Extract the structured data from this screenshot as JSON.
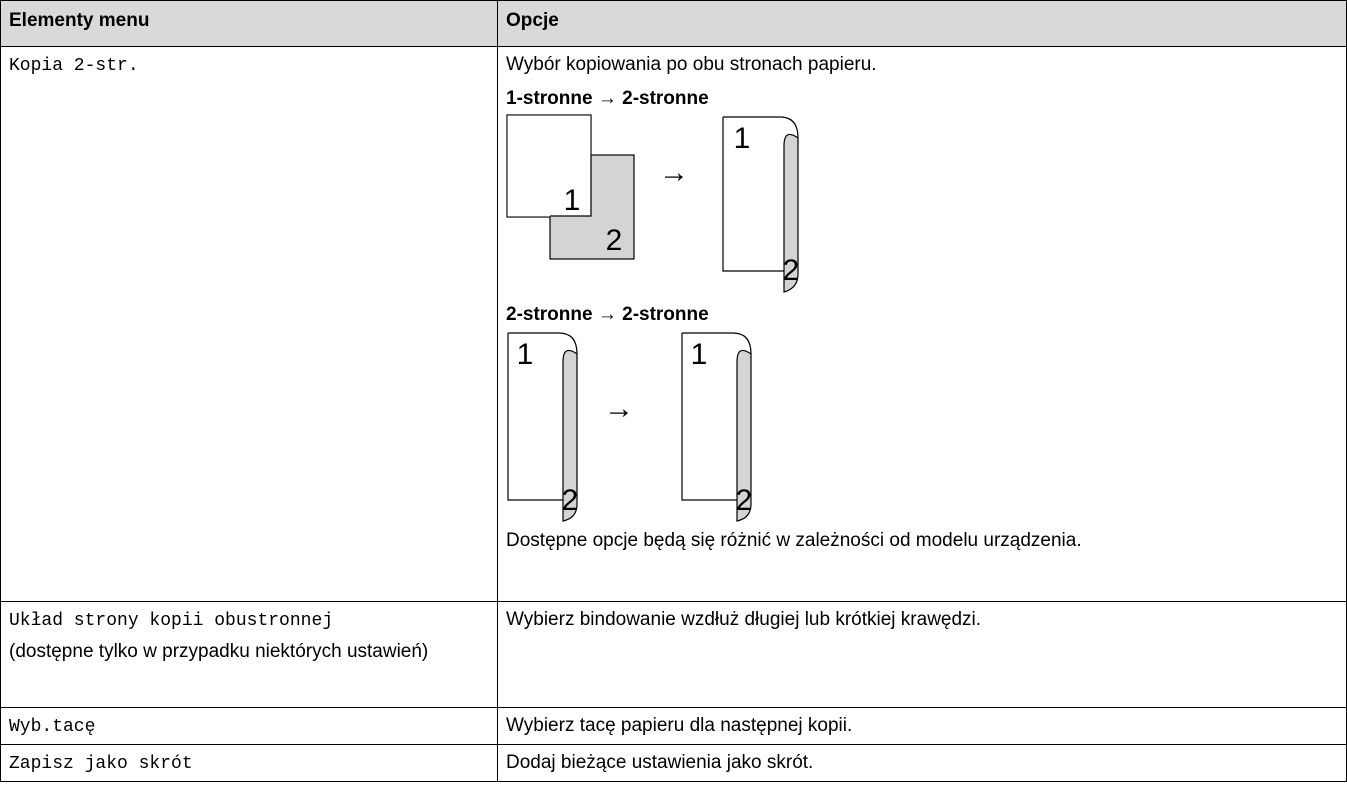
{
  "table": {
    "headers": [
      "Elementy menu",
      "Opcje"
    ],
    "rows": [
      {
        "item": "Kopia 2-str.",
        "options": {
          "description": "Wybór kopiowania po obu stronach papieru.",
          "figures": [
            {
              "caption": "1-stronne → 2-stronne",
              "source": [
                "1",
                "2"
              ],
              "arrow": "→",
              "result": [
                "1",
                "2"
              ]
            },
            {
              "caption": "2-stronne → 2-stronne",
              "source": [
                "1",
                "2"
              ],
              "arrow": "→",
              "result": [
                "1",
                "2"
              ]
            }
          ],
          "note": "Dostępne opcje będą się różnić w zależności od modelu urządzenia."
        }
      },
      {
        "item": "Układ strony kopii obustronnej",
        "item_note": "(dostępne tylko w przypadku niektórych ustawień)",
        "options": "Wybierz bindowanie wzdłuż długiej lub krótkiej krawędzi."
      },
      {
        "item": "Wyb.tacę",
        "options": "Wybierz tacę papieru dla następnej kopii."
      },
      {
        "item": "Zapisz jako skrót",
        "options": "Dodaj bieżące ustawienia jako skrót."
      }
    ]
  }
}
